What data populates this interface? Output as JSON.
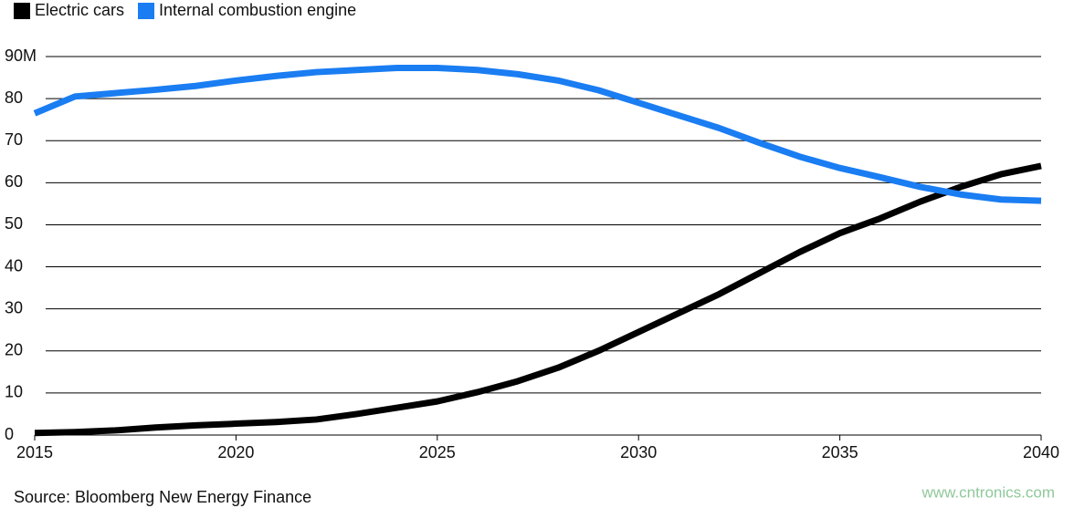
{
  "chart_data": {
    "type": "line",
    "x": [
      2015,
      2016,
      2017,
      2018,
      2019,
      2020,
      2021,
      2022,
      2023,
      2024,
      2025,
      2026,
      2027,
      2028,
      2029,
      2030,
      2031,
      2032,
      2033,
      2034,
      2035,
      2036,
      2037,
      2038,
      2039,
      2040
    ],
    "series": [
      {
        "name": "Electric cars",
        "color": "#000000",
        "values": [
          0.5,
          0.7,
          1.1,
          1.8,
          2.3,
          2.7,
          3.1,
          3.7,
          5.0,
          6.5,
          8.0,
          10.2,
          12.8,
          16.0,
          20.0,
          24.5,
          29.0,
          33.5,
          38.5,
          43.5,
          48.0,
          51.5,
          55.5,
          59.0,
          62.0,
          64.0
        ]
      },
      {
        "name": "Internal combustion engine",
        "color": "#1a7df2",
        "values": [
          76.5,
          80.5,
          81.3,
          82.1,
          83.0,
          84.3,
          85.4,
          86.3,
          86.8,
          87.3,
          87.3,
          86.8,
          85.8,
          84.3,
          82.0,
          79.0,
          76.0,
          73.0,
          69.5,
          66.2,
          63.5,
          61.3,
          59.0,
          57.2,
          56.0,
          55.7
        ]
      }
    ],
    "xlim": [
      2015,
      2040
    ],
    "xticks": [
      2015,
      2020,
      2025,
      2030,
      2035,
      2040
    ],
    "ylim": [
      0,
      90
    ],
    "yticks": [
      0,
      10,
      20,
      30,
      40,
      50,
      60,
      70,
      80,
      {
        "value": 90,
        "label": "90M"
      }
    ],
    "grid": true,
    "legend": "top-left",
    "source": "Source: Bloomberg New Energy Finance",
    "watermark": "www.cntronics.com"
  }
}
